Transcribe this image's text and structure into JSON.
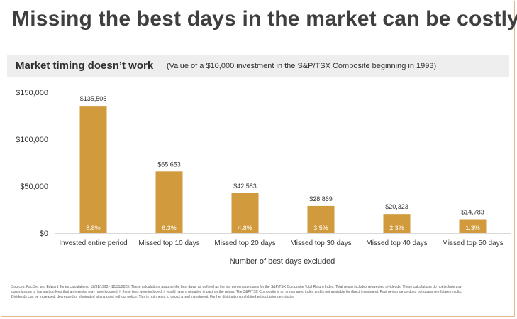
{
  "header": {
    "title": "Missing the best days in the market can be costly",
    "subtitle": "Market timing doesn’t work",
    "subtitle_note": "(Value of a $10,000 investment in the S&P/TSX Composite beginning in 1993)"
  },
  "colors": {
    "bar": "#d19a3c",
    "bar_label_text": "#ffffff",
    "text": "#333333",
    "frame": "#e4b98a"
  },
  "chart_data": {
    "type": "bar",
    "categories": [
      "Invested entire period",
      "Missed top 10 days",
      "Missed top 20 days",
      "Missed top 30 days",
      "Missed top 40 days",
      "Missed top 50 days"
    ],
    "values": [
      135505,
      65653,
      42583,
      28869,
      20323,
      14783
    ],
    "value_labels": [
      "$135,505",
      "$65,653",
      "$42,583",
      "$28,869",
      "$20,323",
      "$14,783"
    ],
    "return_labels": [
      "8.8%",
      "6.3%",
      "4.8%",
      "3.5%",
      "2.3%",
      "1.3%"
    ],
    "xlabel": "Number of best days excluded",
    "ylabel": "",
    "ylim": [
      0,
      150000
    ],
    "yticks": [
      0,
      50000,
      100000,
      150000
    ],
    "ytick_labels": [
      "$0",
      "$50,000",
      "$100,000",
      "$150,000"
    ],
    "grid": false,
    "legend": "none"
  },
  "footnote": "Sources: FactSet and Edward Jones calculations. 12/31/1992 - 12/31/2023. These calculations assume the best days, as defined as the top percentage gains for the S&P/TSX Composite Total Return Index. Total return includes reinvested dividends. These calculations do not include any commissions or transaction fees that an investor may have incurred. If these fees were included, it would have a negative impact on the return. The S&P/TSX Composite is an unmanaged index and is not available for direct investment. Past performance does not guarantee future results. Dividends can be increased, decreased or eliminated at any point without notice. This is not meant to depict a real investment. Further distribution prohibited without prior permission"
}
